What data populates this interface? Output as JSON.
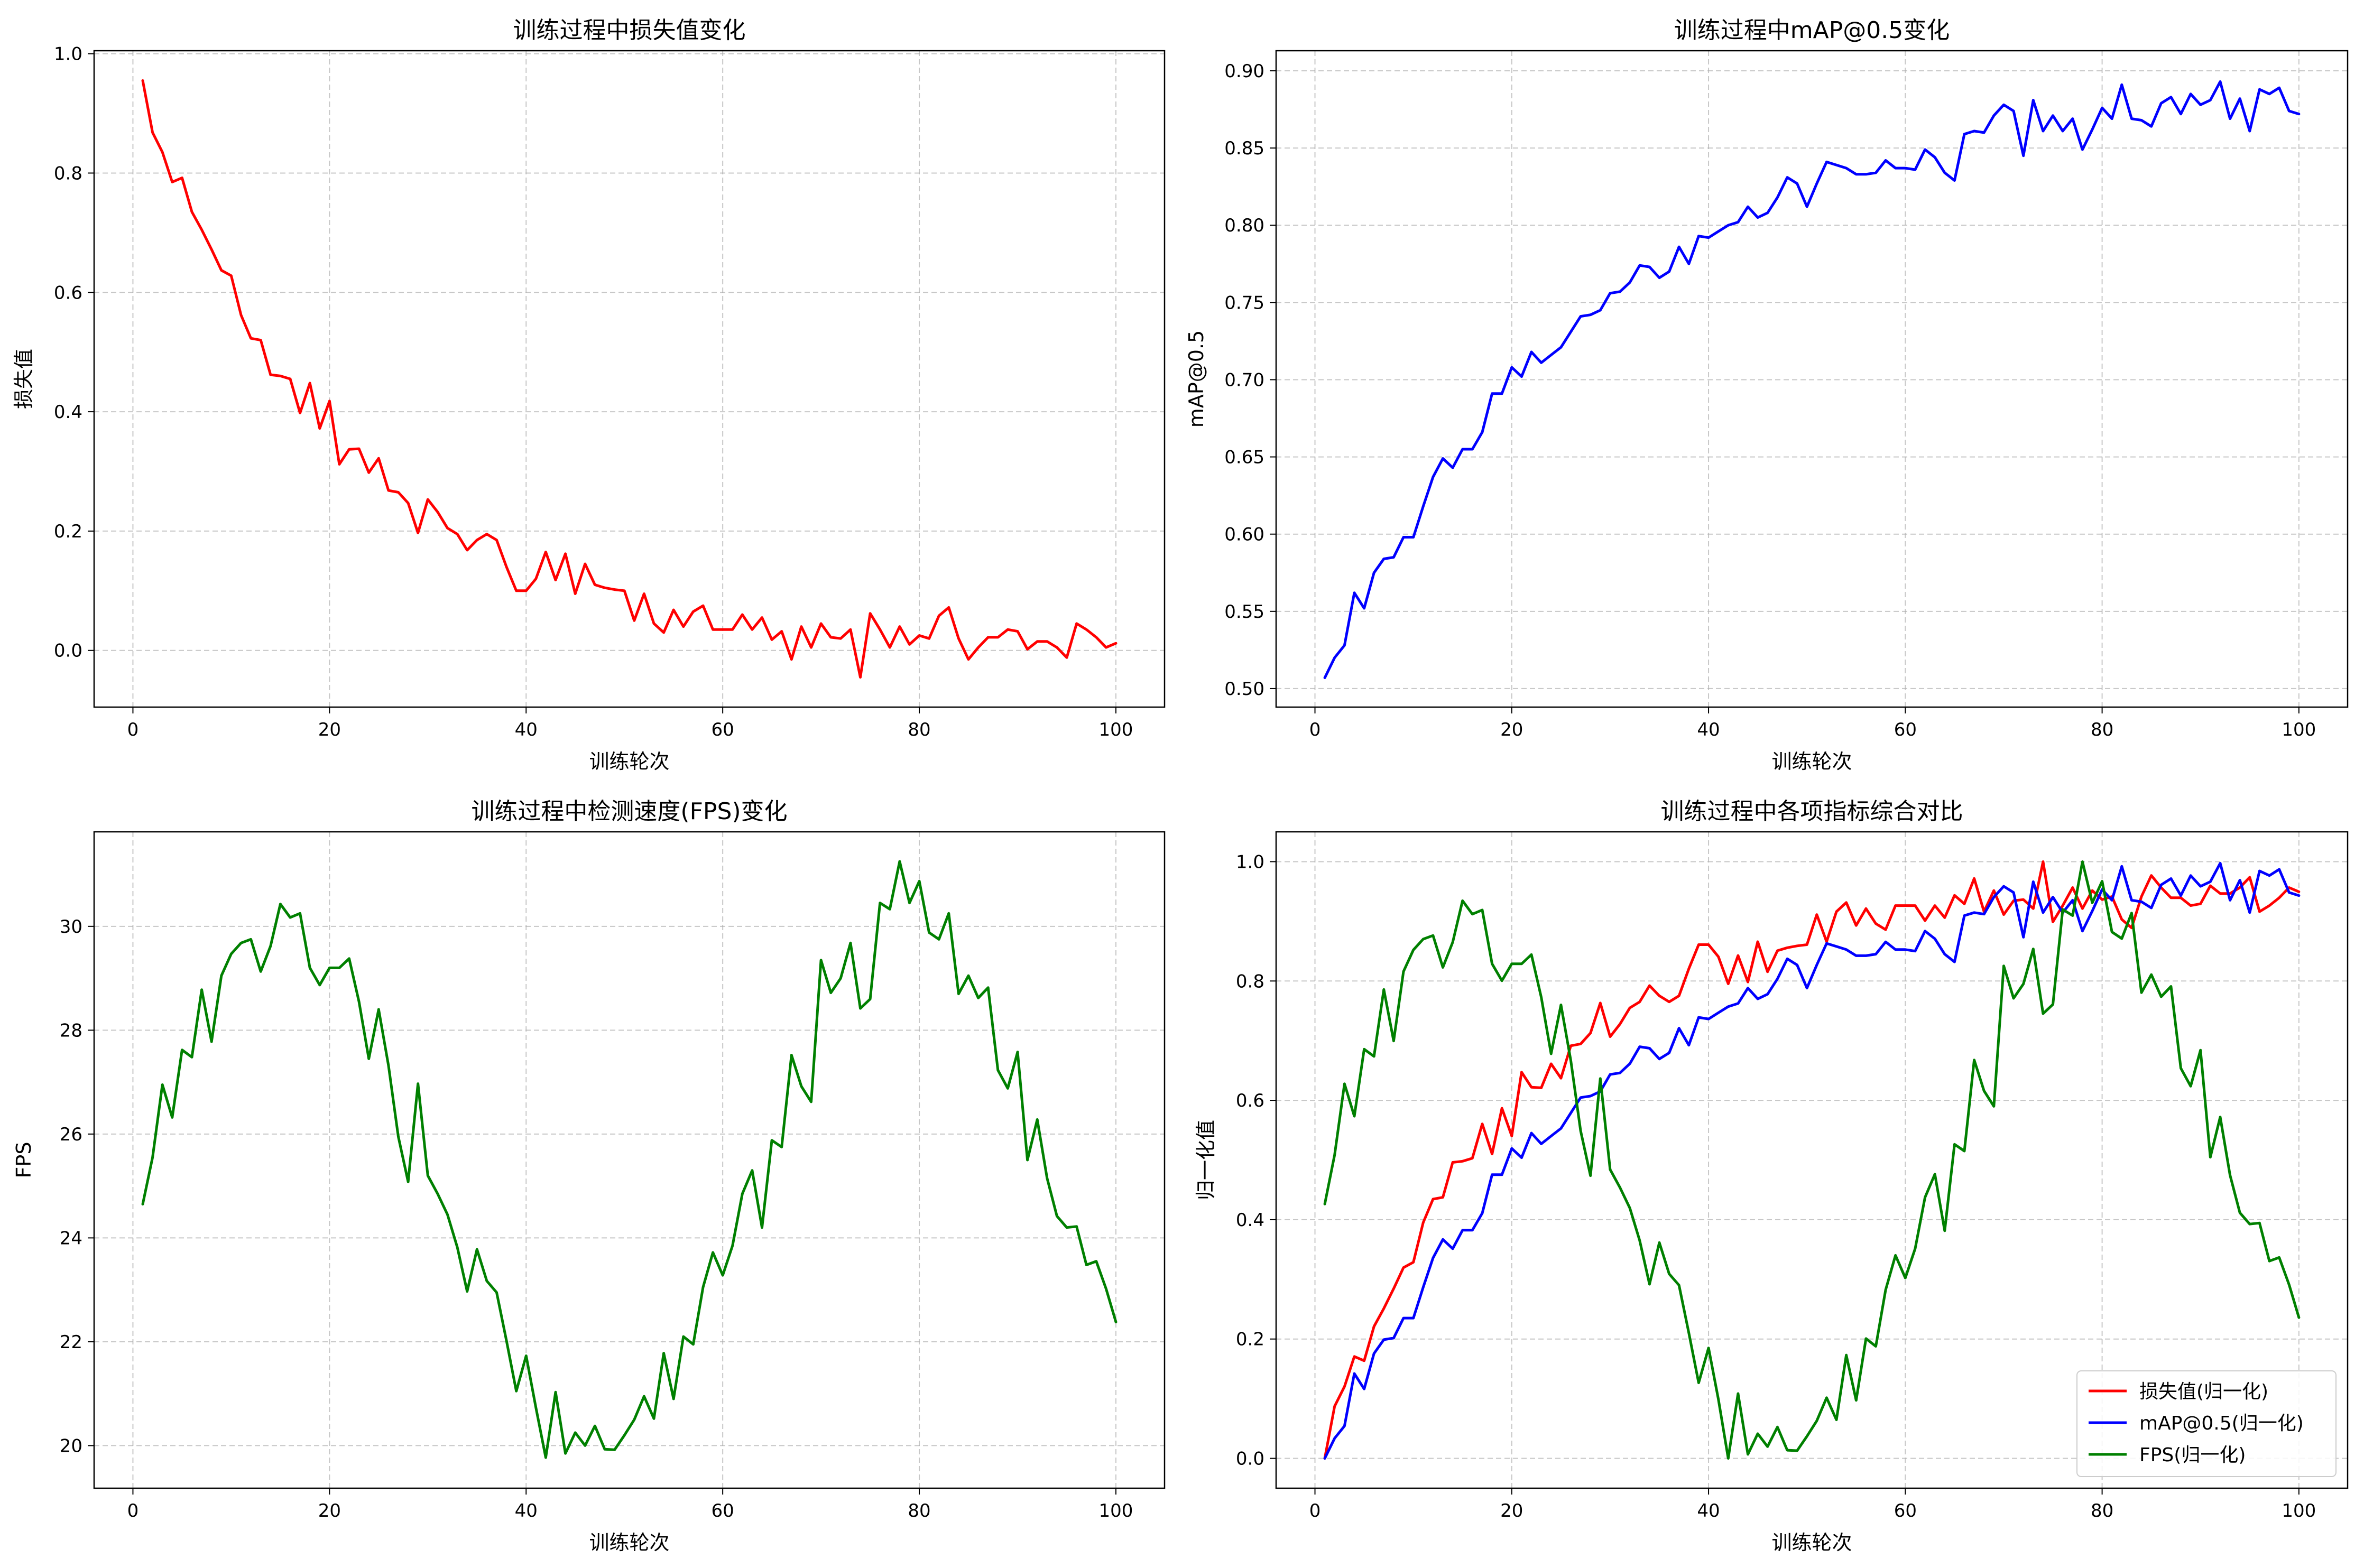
{
  "chart_data": [
    {
      "id": "loss",
      "type": "line",
      "title": "训练过程中损失值变化",
      "xlabel": "训练轮次",
      "ylabel": "损失值",
      "xlim": [
        -3.95,
        104.95
      ],
      "ylim": [
        -0.095,
        1.005
      ],
      "xticks": [
        0,
        20,
        40,
        60,
        80,
        100
      ],
      "yticks": [
        0.0,
        0.2,
        0.4,
        0.6,
        0.8,
        1.0
      ],
      "ytick_labels": [
        "0.0",
        "0.2",
        "0.4",
        "0.6",
        "0.8",
        "1.0"
      ],
      "grid": true,
      "series": [
        {
          "color": "#ff0000",
          "x_start": 1,
          "values": [
            0.955,
            0.868,
            0.835,
            0.785,
            0.792,
            0.735,
            0.705,
            0.672,
            0.637,
            0.628,
            0.562,
            0.523,
            0.52,
            0.462,
            0.46,
            0.455,
            0.398,
            0.448,
            0.372,
            0.418,
            0.312,
            0.337,
            0.338,
            0.298,
            0.322,
            0.268,
            0.265,
            0.247,
            0.197,
            0.253,
            0.232,
            0.205,
            0.195,
            0.168,
            0.185,
            0.195,
            0.185,
            0.14,
            0.1,
            0.1,
            0.12,
            0.165,
            0.118,
            0.162,
            0.095,
            0.145,
            0.11,
            0.105,
            0.102,
            0.1,
            0.05,
            0.095,
            0.045,
            0.03,
            0.068,
            0.04,
            0.065,
            0.075,
            0.035,
            0.035,
            0.035,
            0.06,
            0.035,
            0.055,
            0.018,
            0.032,
            -0.015,
            0.04,
            0.005,
            0.045,
            0.022,
            0.02,
            0.035,
            -0.045,
            0.062,
            0.035,
            0.005,
            0.04,
            0.01,
            0.025,
            0.02,
            0.058,
            0.072,
            0.02,
            -0.015,
            0.005,
            0.022,
            0.022,
            0.035,
            0.032,
            0.002,
            0.015,
            0.015,
            0.005,
            -0.012,
            0.045,
            0.035,
            0.022,
            0.005,
            0.012
          ]
        }
      ]
    },
    {
      "id": "map",
      "type": "line",
      "title": "训练过程中mAP@0.5变化",
      "xlabel": "训练轮次",
      "ylabel": "mAP@0.5",
      "xlim": [
        -3.95,
        104.95
      ],
      "ylim": [
        0.488,
        0.913
      ],
      "xticks": [
        0,
        20,
        40,
        60,
        80,
        100
      ],
      "yticks": [
        0.5,
        0.55,
        0.6,
        0.65,
        0.7,
        0.75,
        0.8,
        0.85,
        0.9
      ],
      "ytick_labels": [
        "0.50",
        "0.55",
        "0.60",
        "0.65",
        "0.70",
        "0.75",
        "0.80",
        "0.85",
        "0.90"
      ],
      "grid": true,
      "series": [
        {
          "color": "#0000ff",
          "x_start": 1,
          "values": [
            0.507,
            0.52,
            0.528,
            0.562,
            0.552,
            0.575,
            0.584,
            0.585,
            0.598,
            0.598,
            0.618,
            0.637,
            0.649,
            0.643,
            0.655,
            0.655,
            0.666,
            0.691,
            0.691,
            0.708,
            0.702,
            0.718,
            0.711,
            0.716,
            0.721,
            0.731,
            0.741,
            0.742,
            0.745,
            0.756,
            0.757,
            0.763,
            0.774,
            0.773,
            0.766,
            0.77,
            0.786,
            0.775,
            0.793,
            0.792,
            0.796,
            0.8,
            0.802,
            0.812,
            0.805,
            0.808,
            0.818,
            0.831,
            0.827,
            0.812,
            0.827,
            0.841,
            0.839,
            0.837,
            0.833,
            0.833,
            0.834,
            0.842,
            0.837,
            0.837,
            0.836,
            0.849,
            0.844,
            0.834,
            0.829,
            0.859,
            0.861,
            0.86,
            0.871,
            0.878,
            0.874,
            0.845,
            0.881,
            0.861,
            0.871,
            0.861,
            0.869,
            0.849,
            0.862,
            0.876,
            0.869,
            0.891,
            0.869,
            0.868,
            0.864,
            0.879,
            0.883,
            0.872,
            0.885,
            0.878,
            0.881,
            0.893,
            0.869,
            0.882,
            0.861,
            0.888,
            0.885,
            0.889,
            0.874,
            0.872
          ]
        }
      ]
    },
    {
      "id": "fps",
      "type": "line",
      "title": "训练过程中检测速度(FPS)变化",
      "xlabel": "训练轮次",
      "ylabel": "FPS",
      "xlim": [
        -3.95,
        104.95
      ],
      "ylim": [
        19.18,
        31.82
      ],
      "xticks": [
        0,
        20,
        40,
        60,
        80,
        100
      ],
      "yticks": [
        20,
        22,
        24,
        26,
        28,
        30
      ],
      "ytick_labels": [
        "20",
        "22",
        "24",
        "26",
        "28",
        "30"
      ],
      "grid": true,
      "series": [
        {
          "color": "#008000",
          "x_start": 1,
          "values": [
            24.65,
            25.55,
            26.95,
            26.32,
            27.62,
            27.48,
            28.78,
            27.78,
            29.05,
            29.47,
            29.68,
            29.75,
            29.13,
            29.62,
            30.43,
            30.17,
            30.25,
            29.2,
            28.87,
            29.2,
            29.2,
            29.38,
            28.55,
            27.45,
            28.4,
            27.32,
            25.95,
            25.08,
            26.97,
            25.2,
            24.85,
            24.45,
            23.82,
            22.97,
            23.78,
            23.17,
            22.95,
            22.02,
            21.05,
            21.73,
            20.73,
            19.77,
            21.03,
            19.85,
            20.25,
            20.0,
            20.38,
            19.93,
            19.92,
            20.2,
            20.5,
            20.95,
            20.52,
            21.78,
            20.9,
            22.1,
            21.95,
            23.05,
            23.72,
            23.28,
            23.85,
            24.85,
            25.3,
            24.2,
            25.88,
            25.75,
            27.52,
            26.92,
            26.62,
            29.35,
            28.72,
            29.0,
            29.68,
            28.42,
            28.6,
            30.45,
            30.33,
            31.25,
            30.45,
            30.87,
            29.88,
            29.75,
            30.25,
            28.7,
            29.05,
            28.62,
            28.82,
            27.23,
            26.88,
            27.58,
            25.5,
            26.28,
            25.15,
            24.42,
            24.2,
            24.22,
            23.48,
            23.55,
            23.02,
            22.38
          ]
        }
      ]
    },
    {
      "id": "combined",
      "type": "line",
      "title": "训练过程中各项指标综合对比",
      "xlabel": "训练轮次",
      "ylabel": "归一化值",
      "xlim": [
        -3.95,
        104.95
      ],
      "ylim": [
        -0.05,
        1.05
      ],
      "xticks": [
        0,
        20,
        40,
        60,
        80,
        100
      ],
      "yticks": [
        0.0,
        0.2,
        0.4,
        0.6,
        0.8,
        1.0
      ],
      "ytick_labels": [
        "0.0",
        "0.2",
        "0.4",
        "0.6",
        "0.8",
        "1.0"
      ],
      "grid": true,
      "legend_position": "lower-right",
      "series": [
        {
          "name": "损失值(归一化)",
          "color": "#ff0000",
          "x_start": 1,
          "values": [
            0.0,
            0.0873,
            0.1204,
            0.1707,
            0.1636,
            0.221,
            0.2512,
            0.2844,
            0.3197,
            0.3287,
            0.3952,
            0.4345,
            0.4375,
            0.496,
            0.498,
            0.503,
            0.5605,
            0.5101,
            0.5867,
            0.5403,
            0.6472,
            0.622,
            0.621,
            0.6613,
            0.6371,
            0.6915,
            0.6946,
            0.7127,
            0.7631,
            0.7067,
            0.7278,
            0.755,
            0.7651,
            0.7923,
            0.7752,
            0.7651,
            0.7752,
            0.8206,
            0.8609,
            0.8609,
            0.8407,
            0.7954,
            0.8427,
            0.7984,
            0.8659,
            0.8155,
            0.8508,
            0.8558,
            0.8589,
            0.8609,
            0.9113,
            0.8659,
            0.9163,
            0.9315,
            0.8931,
            0.9214,
            0.8962,
            0.8861,
            0.9264,
            0.9264,
            0.9264,
            0.9012,
            0.9264,
            0.9062,
            0.9435,
            0.9294,
            0.9718,
            0.9163,
            0.9516,
            0.9113,
            0.9345,
            0.9365,
            0.9214,
            1.0,
            0.8992,
            0.9264,
            0.9566,
            0.9214,
            0.9516,
            0.9365,
            0.9415,
            0.9032,
            0.8891,
            0.9415,
            0.9768,
            0.9566,
            0.9395,
            0.9395,
            0.9264,
            0.9294,
            0.9597,
            0.9466,
            0.9466,
            0.9566,
            0.9738,
            0.9163,
            0.9264,
            0.9395,
            0.9566,
            0.9496
          ]
        },
        {
          "name": "mAP@0.5(归一化)",
          "color": "#0000ff",
          "x_start": 1,
          "values": [
            0.0,
            0.0336,
            0.0543,
            0.1421,
            0.1163,
            0.1757,
            0.199,
            0.2016,
            0.2351,
            0.2351,
            0.2868,
            0.3359,
            0.3669,
            0.3514,
            0.3824,
            0.3824,
            0.4109,
            0.4755,
            0.4755,
            0.5194,
            0.5039,
            0.5452,
            0.5271,
            0.5401,
            0.553,
            0.5788,
            0.6047,
            0.6072,
            0.615,
            0.6434,
            0.646,
            0.6615,
            0.6899,
            0.6873,
            0.6693,
            0.6796,
            0.7209,
            0.6925,
            0.739,
            0.7364,
            0.7468,
            0.7571,
            0.7623,
            0.7881,
            0.77,
            0.7778,
            0.8036,
            0.8372,
            0.8269,
            0.7881,
            0.8269,
            0.863,
            0.8579,
            0.8527,
            0.8424,
            0.8424,
            0.845,
            0.8656,
            0.8527,
            0.8527,
            0.8501,
            0.8837,
            0.8708,
            0.845,
            0.832,
            0.9096,
            0.9147,
            0.9121,
            0.9406,
            0.9587,
            0.9483,
            0.8734,
            0.9664,
            0.9147,
            0.9406,
            0.9147,
            0.9354,
            0.8837,
            0.9173,
            0.9535,
            0.9354,
            0.9922,
            0.9354,
            0.9328,
            0.9225,
            0.9612,
            0.9716,
            0.9432,
            0.9767,
            0.9587,
            0.9664,
            0.9974,
            0.9354,
            0.969,
            0.9147,
            0.9845,
            0.9767,
            0.9871,
            0.9483,
            0.9432
          ]
        },
        {
          "name": "FPS(归一化)",
          "color": "#008000",
          "x_start": 1,
          "values": [
            0.4262,
            0.5085,
            0.6277,
            0.5734,
            0.6857,
            0.6737,
            0.7857,
            0.6995,
            0.8159,
            0.8521,
            0.8702,
            0.8762,
            0.8228,
            0.865,
            0.9345,
            0.9121,
            0.919,
            0.8288,
            0.8004,
            0.8288,
            0.8288,
            0.8443,
            0.7728,
            0.678,
            0.7599,
            0.6668,
            0.5488,
            0.4738,
            0.6366,
            0.4841,
            0.4539,
            0.4194,
            0.3651,
            0.2919,
            0.3617,
            0.3091,
            0.2902,
            0.2101,
            0.1266,
            0.1851,
            0.099,
            0.0,
            0.1085,
            0.0068,
            0.0413,
            0.0197,
            0.0525,
            0.0137,
            0.0129,
            0.037,
            0.0629,
            0.1016,
            0.0646,
            0.1731,
            0.0973,
            0.2007,
            0.1878,
            0.2825,
            0.3402,
            0.3023,
            0.3514,
            0.4375,
            0.4763,
            0.3815,
            0.5263,
            0.5151,
            0.6676,
            0.6159,
            0.59,
            0.8253,
            0.771,
            0.7951,
            0.8537,
            0.7453,
            0.7607,
            0.9199,
            0.9096,
            1.0,
            0.9311,
            0.9672,
            0.8822,
            0.8711,
            0.9139,
            0.7805,
            0.8107,
            0.7737,
            0.7909,
            0.6538,
            0.6237,
            0.684,
            0.5048,
            0.572,
            0.4745,
            0.4116,
            0.3927,
            0.3944,
            0.3307,
            0.3367,
            0.2911,
            0.236
          ]
        }
      ]
    }
  ]
}
